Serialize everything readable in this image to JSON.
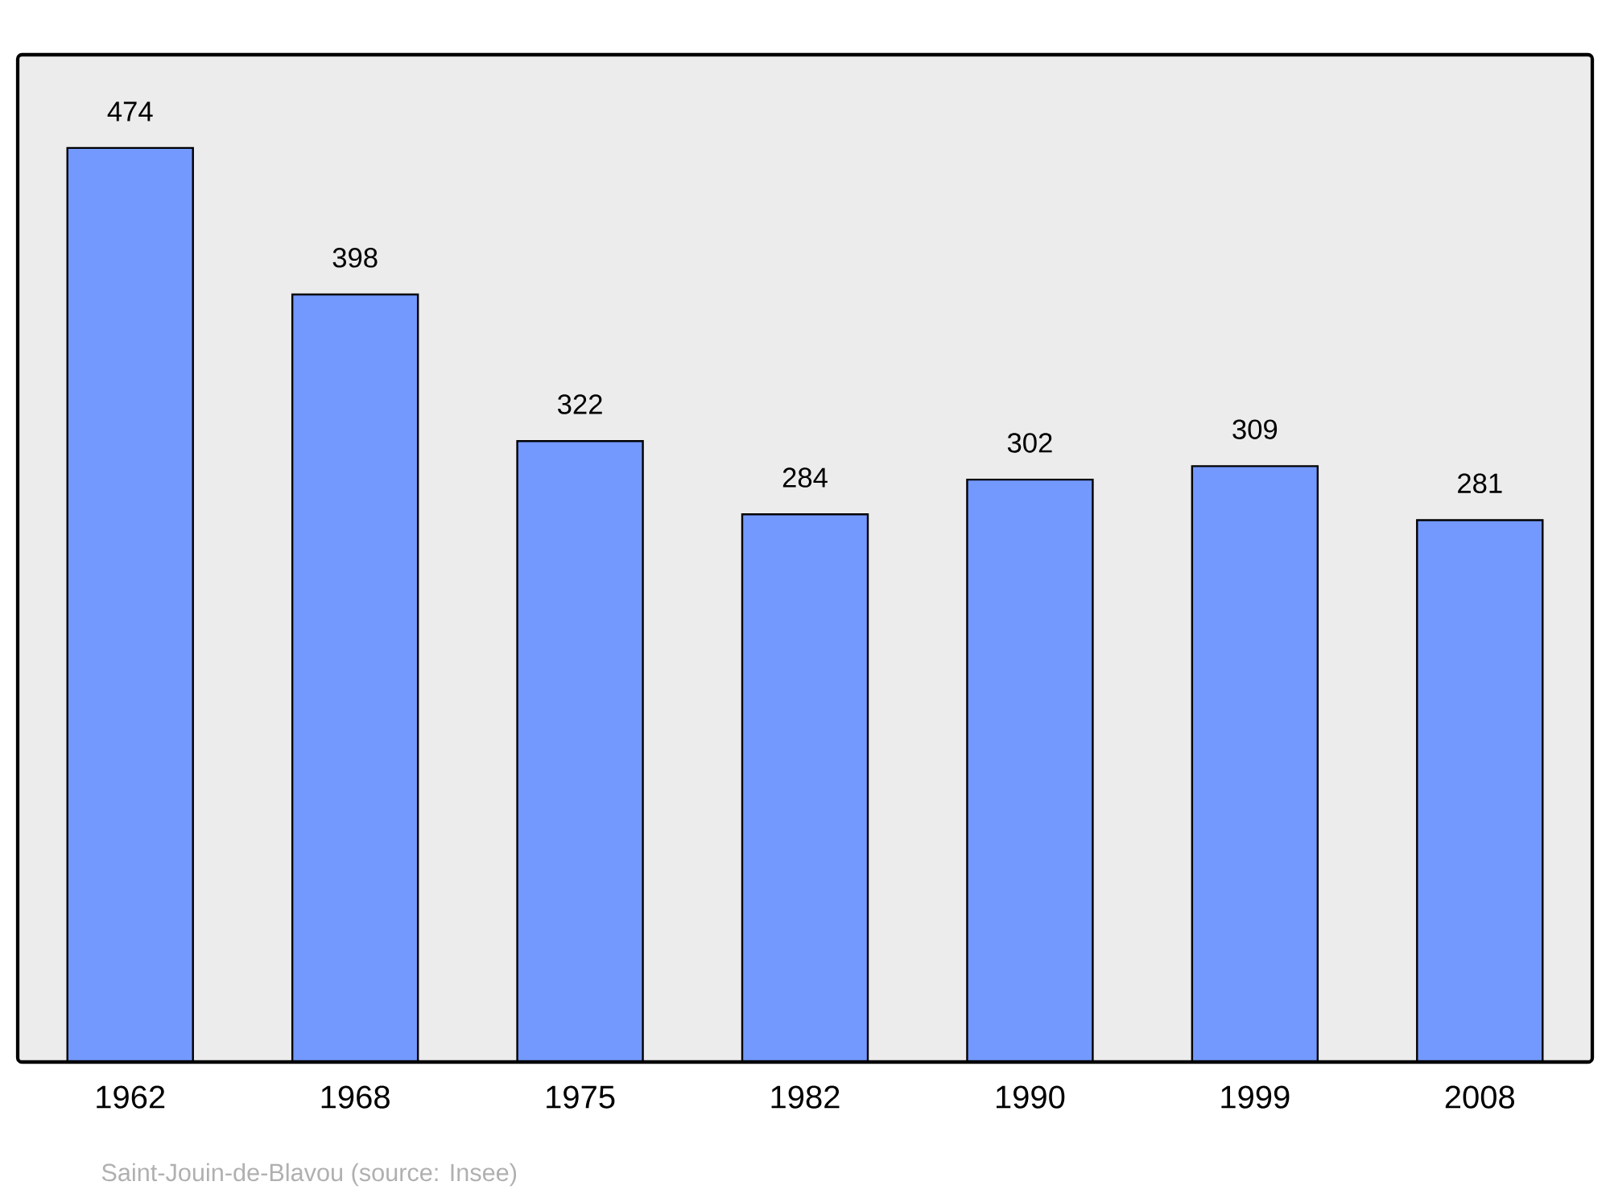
{
  "chart_data": {
    "type": "bar",
    "categories": [
      "1962",
      "1968",
      "1975",
      "1982",
      "1990",
      "1999",
      "2008"
    ],
    "values": [
      474,
      398,
      322,
      284,
      302,
      309,
      281
    ],
    "color": "#7399ff",
    "data_labels": true,
    "annotations": [
      "Saint-Jouin-de-Blavou    (source: Insee)"
    ]
  }
}
